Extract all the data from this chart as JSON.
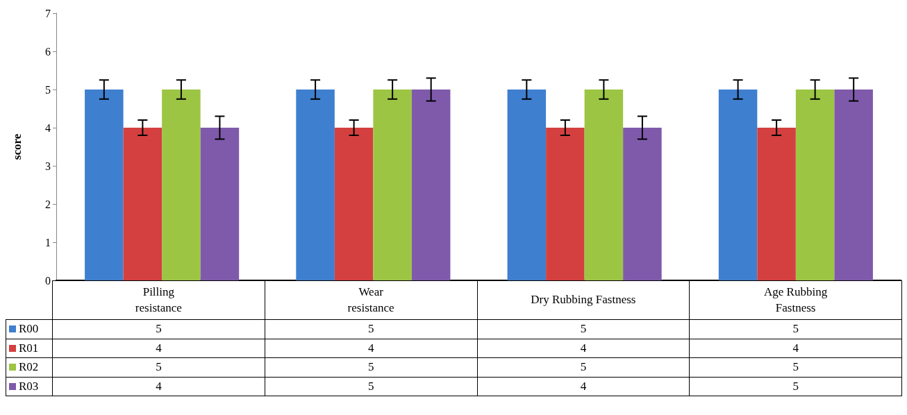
{
  "chart_data": {
    "type": "bar",
    "ylabel": "score",
    "categories": [
      "Pilling\nresistance",
      "Wear\nresistance",
      "Dry Rubbing Fastness",
      "Age Rubbing\nFastness"
    ],
    "series": [
      {
        "name": "R00",
        "color": "#3f7fcf",
        "values": [
          5,
          5,
          5,
          5
        ],
        "errors": [
          0.25,
          0.25,
          0.25,
          0.25
        ]
      },
      {
        "name": "R01",
        "color": "#d44040",
        "values": [
          4,
          4,
          4,
          4
        ],
        "errors": [
          0.2,
          0.2,
          0.2,
          0.2
        ]
      },
      {
        "name": "R02",
        "color": "#9dc544",
        "values": [
          5,
          5,
          5,
          5
        ],
        "errors": [
          0.25,
          0.25,
          0.25,
          0.25
        ]
      },
      {
        "name": "R03",
        "color": "#7f5aab",
        "values": [
          4,
          5,
          4,
          5
        ],
        "errors": [
          0.3,
          0.3,
          0.3,
          0.3
        ]
      }
    ],
    "ylim": [
      0,
      7
    ],
    "yticks": [
      0,
      1,
      2,
      3,
      4,
      5,
      6,
      7
    ],
    "grid": false,
    "legend": "bottom",
    "data_labels": true
  }
}
